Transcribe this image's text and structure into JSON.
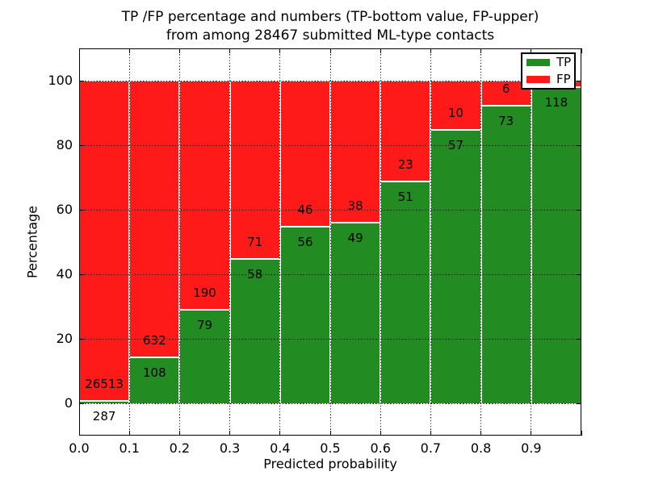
{
  "title": {
    "line1": "TP /FP percentage and numbers (TP-bottom value, FP-upper)",
    "line2": "from among 28467 submitted ML-type contacts"
  },
  "chart_data": {
    "type": "bar",
    "subtype": "stacked-percentage",
    "title": "TP /FP percentage and numbers (TP-bottom value, FP-upper) from among 28467 submitted ML-type contacts",
    "xlabel": "Predicted probability",
    "ylabel": "Percentage",
    "xlim": [
      0.0,
      1.0
    ],
    "ylim": [
      -10,
      110
    ],
    "x_tick_labels": [
      "0.0",
      "0.1",
      "0.2",
      "0.3",
      "0.4",
      "0.5",
      "0.6",
      "0.7",
      "0.8",
      "0.9"
    ],
    "y_tick_values": [
      0,
      20,
      40,
      60,
      80,
      100
    ],
    "grid": "dotted",
    "categories": [
      "0.0-0.1",
      "0.1-0.2",
      "0.2-0.3",
      "0.3-0.4",
      "0.4-0.5",
      "0.5-0.6",
      "0.6-0.7",
      "0.7-0.8",
      "0.8-0.9",
      "0.9-1.0"
    ],
    "series": [
      {
        "name": "TP",
        "color": "#228b22",
        "counts": [
          287,
          108,
          79,
          58,
          56,
          49,
          51,
          57,
          73,
          118
        ]
      },
      {
        "name": "FP",
        "color": "#ff1a1a",
        "counts": [
          26513,
          632,
          190,
          71,
          46,
          38,
          23,
          10,
          6,
          null
        ]
      }
    ],
    "tp_percent": [
      1.07,
      14.59,
      29.37,
      44.96,
      54.9,
      56.32,
      68.92,
      85.07,
      92.41,
      98.33
    ],
    "bar_value_labels": {
      "tp": [
        "287",
        "108",
        "79",
        "58",
        "56",
        "49",
        "51",
        "57",
        "73",
        "118"
      ],
      "fp": [
        "26513",
        "632",
        "190",
        "71",
        "46",
        "38",
        "23",
        "10",
        "6",
        ""
      ]
    },
    "legend_position": "upper right",
    "legend_entries": [
      {
        "label": "TP",
        "color": "#228b22"
      },
      {
        "label": "FP",
        "color": "#ff1a1a"
      }
    ]
  }
}
